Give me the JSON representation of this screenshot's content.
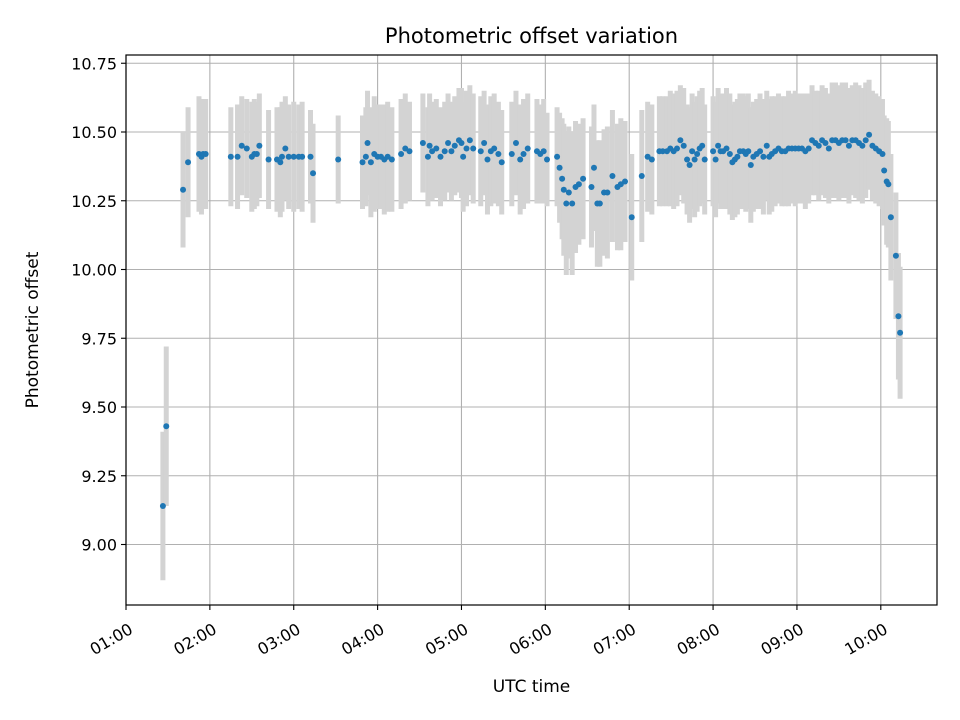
{
  "chart_data": {
    "type": "scatter",
    "title": "Photometric offset variation",
    "xlabel": "UTC time",
    "ylabel": "Photometric offset",
    "x_unit": "hours",
    "xlim": [
      1.0,
      10.67
    ],
    "ylim": [
      8.78,
      10.78
    ],
    "x_ticks": [
      1,
      2,
      3,
      4,
      5,
      6,
      7,
      8,
      9,
      10
    ],
    "x_tick_labels": [
      "01:00",
      "02:00",
      "03:00",
      "04:00",
      "05:00",
      "06:00",
      "07:00",
      "08:00",
      "09:00",
      "10:00"
    ],
    "y_ticks": [
      9.0,
      9.25,
      9.5,
      9.75,
      10.0,
      10.25,
      10.5,
      10.75
    ],
    "y_tick_labels": [
      "9.00",
      "9.25",
      "9.50",
      "9.75",
      "10.00",
      "10.25",
      "10.50",
      "10.75"
    ],
    "grid": true,
    "colors": {
      "points": "#1f77b4",
      "errorbars": "#d3d3d3",
      "grid": "#b0b0b0",
      "axes": "#000000"
    },
    "series": [
      {
        "marker": "point",
        "errorbars": true,
        "points": [
          [
            1.44,
            9.14,
            0.27
          ],
          [
            1.48,
            9.43,
            0.29
          ],
          [
            1.68,
            10.29,
            0.21
          ],
          [
            1.74,
            10.39,
            0.2
          ],
          [
            1.87,
            10.42,
            0.21
          ],
          [
            1.9,
            10.41,
            0.21
          ],
          [
            1.92,
            10.42,
            0.2
          ],
          [
            1.95,
            10.42,
            0.2
          ],
          [
            2.25,
            10.41,
            0.18
          ],
          [
            2.33,
            10.41,
            0.19
          ],
          [
            2.38,
            10.45,
            0.18
          ],
          [
            2.44,
            10.44,
            0.18
          ],
          [
            2.5,
            10.41,
            0.2
          ],
          [
            2.53,
            10.42,
            0.2
          ],
          [
            2.56,
            10.42,
            0.19
          ],
          [
            2.59,
            10.45,
            0.19
          ],
          [
            2.7,
            10.4,
            0.18
          ],
          [
            2.8,
            10.4,
            0.19
          ],
          [
            2.84,
            10.39,
            0.2
          ],
          [
            2.86,
            10.41,
            0.2
          ],
          [
            2.9,
            10.44,
            0.19
          ],
          [
            2.94,
            10.41,
            0.19
          ],
          [
            3.0,
            10.41,
            0.2
          ],
          [
            3.06,
            10.41,
            0.19
          ],
          [
            3.1,
            10.41,
            0.2
          ],
          [
            3.2,
            10.41,
            0.17
          ],
          [
            3.23,
            10.35,
            0.18
          ],
          [
            3.53,
            10.4,
            0.16
          ],
          [
            3.82,
            10.39,
            0.17
          ],
          [
            3.86,
            10.41,
            0.18
          ],
          [
            3.88,
            10.46,
            0.19
          ],
          [
            3.92,
            10.39,
            0.2
          ],
          [
            3.96,
            10.42,
            0.21
          ],
          [
            4.0,
            10.41,
            0.19
          ],
          [
            4.04,
            10.41,
            0.19
          ],
          [
            4.08,
            10.4,
            0.2
          ],
          [
            4.12,
            10.41,
            0.2
          ],
          [
            4.17,
            10.4,
            0.19
          ],
          [
            4.28,
            10.42,
            0.2
          ],
          [
            4.33,
            10.44,
            0.2
          ],
          [
            4.38,
            10.43,
            0.18
          ],
          [
            4.54,
            10.46,
            0.18
          ],
          [
            4.6,
            10.41,
            0.18
          ],
          [
            4.62,
            10.45,
            0.19
          ],
          [
            4.65,
            10.43,
            0.18
          ],
          [
            4.7,
            10.44,
            0.18
          ],
          [
            4.75,
            10.41,
            0.18
          ],
          [
            4.8,
            10.43,
            0.18
          ],
          [
            4.84,
            10.46,
            0.18
          ],
          [
            4.88,
            10.43,
            0.18
          ],
          [
            4.92,
            10.45,
            0.18
          ],
          [
            4.97,
            10.47,
            0.19
          ],
          [
            5.0,
            10.46,
            0.2
          ],
          [
            5.02,
            10.41,
            0.2
          ],
          [
            5.06,
            10.44,
            0.21
          ],
          [
            5.1,
            10.47,
            0.2
          ],
          [
            5.14,
            10.44,
            0.2
          ],
          [
            5.23,
            10.43,
            0.2
          ],
          [
            5.27,
            10.46,
            0.19
          ],
          [
            5.31,
            10.4,
            0.2
          ],
          [
            5.35,
            10.43,
            0.2
          ],
          [
            5.39,
            10.44,
            0.2
          ],
          [
            5.44,
            10.42,
            0.19
          ],
          [
            5.48,
            10.39,
            0.19
          ],
          [
            5.6,
            10.42,
            0.19
          ],
          [
            5.65,
            10.46,
            0.19
          ],
          [
            5.7,
            10.4,
            0.2
          ],
          [
            5.74,
            10.42,
            0.2
          ],
          [
            5.79,
            10.44,
            0.2
          ],
          [
            5.9,
            10.43,
            0.19
          ],
          [
            5.94,
            10.42,
            0.18
          ],
          [
            5.98,
            10.43,
            0.19
          ],
          [
            6.02,
            10.4,
            0.17
          ],
          [
            6.14,
            10.41,
            0.18
          ],
          [
            6.17,
            10.37,
            0.2
          ],
          [
            6.2,
            10.33,
            0.22
          ],
          [
            6.22,
            10.29,
            0.24
          ],
          [
            6.25,
            10.24,
            0.26
          ],
          [
            6.28,
            10.28,
            0.24
          ],
          [
            6.32,
            10.24,
            0.26
          ],
          [
            6.36,
            10.3,
            0.24
          ],
          [
            6.4,
            10.31,
            0.22
          ],
          [
            6.45,
            10.33,
            0.22
          ],
          [
            6.55,
            10.3,
            0.22
          ],
          [
            6.58,
            10.37,
            0.23
          ],
          [
            6.62,
            10.24,
            0.23
          ],
          [
            6.65,
            10.24,
            0.23
          ],
          [
            6.7,
            10.28,
            0.23
          ],
          [
            6.74,
            10.28,
            0.24
          ],
          [
            6.8,
            10.34,
            0.24
          ],
          [
            6.86,
            10.3,
            0.23
          ],
          [
            6.9,
            10.31,
            0.24
          ],
          [
            6.95,
            10.32,
            0.22
          ],
          [
            7.03,
            10.19,
            0.23
          ],
          [
            7.15,
            10.34,
            0.24
          ],
          [
            7.22,
            10.41,
            0.2
          ],
          [
            7.27,
            10.4,
            0.2
          ],
          [
            7.36,
            10.43,
            0.2
          ],
          [
            7.4,
            10.43,
            0.2
          ],
          [
            7.45,
            10.43,
            0.2
          ],
          [
            7.49,
            10.44,
            0.21
          ],
          [
            7.53,
            10.43,
            0.21
          ],
          [
            7.57,
            10.44,
            0.21
          ],
          [
            7.61,
            10.47,
            0.2
          ],
          [
            7.65,
            10.45,
            0.21
          ],
          [
            7.69,
            10.4,
            0.2
          ],
          [
            7.72,
            10.38,
            0.21
          ],
          [
            7.75,
            10.43,
            0.21
          ],
          [
            7.78,
            10.4,
            0.21
          ],
          [
            7.81,
            10.42,
            0.21
          ],
          [
            7.84,
            10.44,
            0.21
          ],
          [
            7.87,
            10.45,
            0.21
          ],
          [
            7.9,
            10.4,
            0.2
          ],
          [
            8.0,
            10.43,
            0.2
          ],
          [
            8.03,
            10.4,
            0.21
          ],
          [
            8.06,
            10.45,
            0.21
          ],
          [
            8.09,
            10.43,
            0.21
          ],
          [
            8.12,
            10.43,
            0.21
          ],
          [
            8.16,
            10.44,
            0.22
          ],
          [
            8.2,
            10.42,
            0.22
          ],
          [
            8.23,
            10.39,
            0.21
          ],
          [
            8.26,
            10.4,
            0.21
          ],
          [
            8.29,
            10.41,
            0.21
          ],
          [
            8.32,
            10.43,
            0.21
          ],
          [
            8.36,
            10.43,
            0.21
          ],
          [
            8.39,
            10.42,
            0.21
          ],
          [
            8.42,
            10.43,
            0.21
          ],
          [
            8.45,
            10.38,
            0.21
          ],
          [
            8.48,
            10.41,
            0.2
          ],
          [
            8.52,
            10.42,
            0.2
          ],
          [
            8.56,
            10.43,
            0.21
          ],
          [
            8.6,
            10.41,
            0.21
          ],
          [
            8.64,
            10.45,
            0.2
          ],
          [
            8.67,
            10.41,
            0.21
          ],
          [
            8.7,
            10.42,
            0.21
          ],
          [
            8.74,
            10.43,
            0.2
          ],
          [
            8.78,
            10.44,
            0.2
          ],
          [
            8.82,
            10.43,
            0.2
          ],
          [
            8.86,
            10.43,
            0.2
          ],
          [
            8.9,
            10.44,
            0.21
          ],
          [
            8.94,
            10.44,
            0.2
          ],
          [
            8.98,
            10.44,
            0.21
          ],
          [
            9.02,
            10.44,
            0.2
          ],
          [
            9.06,
            10.44,
            0.2
          ],
          [
            9.1,
            10.43,
            0.21
          ],
          [
            9.14,
            10.44,
            0.2
          ],
          [
            9.18,
            10.47,
            0.2
          ],
          [
            9.22,
            10.46,
            0.19
          ],
          [
            9.26,
            10.45,
            0.2
          ],
          [
            9.3,
            10.47,
            0.2
          ],
          [
            9.34,
            10.46,
            0.2
          ],
          [
            9.38,
            10.44,
            0.2
          ],
          [
            9.42,
            10.47,
            0.21
          ],
          [
            9.46,
            10.47,
            0.21
          ],
          [
            9.5,
            10.46,
            0.21
          ],
          [
            9.54,
            10.47,
            0.21
          ],
          [
            9.58,
            10.47,
            0.21
          ],
          [
            9.62,
            10.45,
            0.21
          ],
          [
            9.66,
            10.47,
            0.2
          ],
          [
            9.7,
            10.47,
            0.21
          ],
          [
            9.74,
            10.46,
            0.21
          ],
          [
            9.78,
            10.45,
            0.21
          ],
          [
            9.82,
            10.47,
            0.21
          ],
          [
            9.86,
            10.49,
            0.2
          ],
          [
            9.9,
            10.45,
            0.2
          ],
          [
            9.94,
            10.44,
            0.2
          ],
          [
            9.98,
            10.43,
            0.2
          ],
          [
            10.02,
            10.42,
            0.2
          ],
          [
            10.04,
            10.36,
            0.2
          ],
          [
            10.07,
            10.32,
            0.23
          ],
          [
            10.09,
            10.31,
            0.23
          ],
          [
            10.12,
            10.19,
            0.23
          ],
          [
            10.18,
            10.05,
            0.23
          ],
          [
            10.21,
            9.83,
            0.23
          ],
          [
            10.23,
            9.77,
            0.24
          ]
        ]
      }
    ]
  }
}
